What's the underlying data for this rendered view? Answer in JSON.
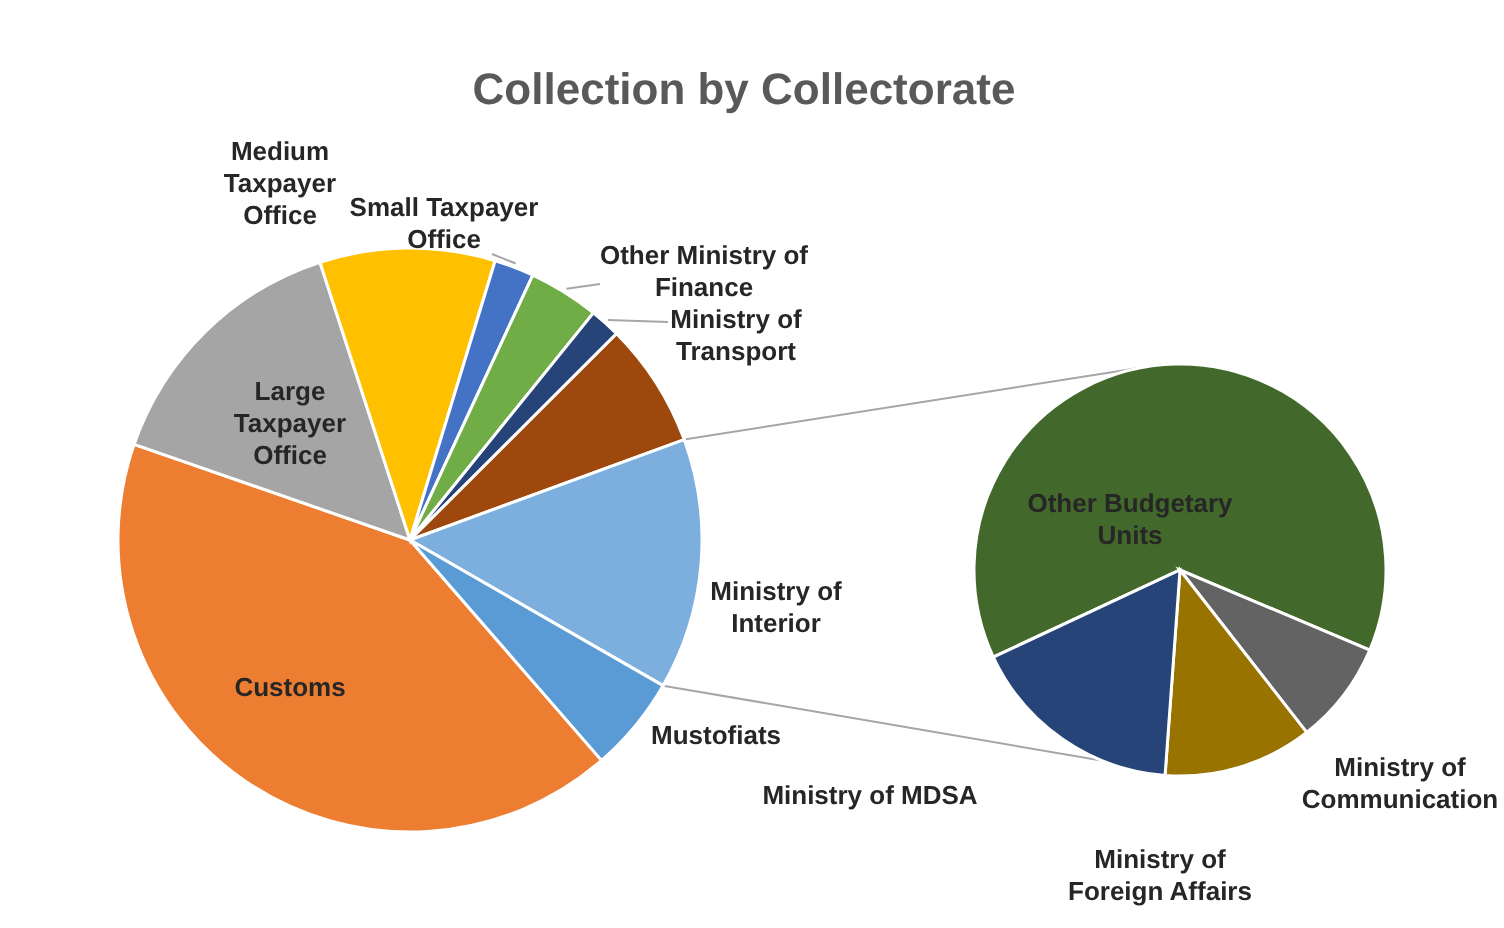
{
  "chart_data": [
    {
      "type": "pie",
      "title": "Collection by Collectorate",
      "categories": [
        "Customs",
        "Large Taxpayer Office",
        "Medium Taxpayer Office",
        "Small Taxpayer Office",
        "Other Ministry of Finance",
        "Ministry of Transport",
        null,
        "Ministry of Interior",
        "Mustofiats"
      ],
      "values": [
        41.7,
        14.7,
        9.7,
        2.2,
        3.9,
        1.7,
        6.9,
        13.9,
        5.3
      ],
      "colors": [
        "#ed7d31",
        "#a5a5a5",
        "#ffc000",
        "#4472c4",
        "#70ad47",
        "#264478",
        "#9e480e",
        "#7cafdd",
        "#5b9bd5"
      ]
    },
    {
      "type": "pie",
      "categories": [
        "Other Budgetary Units",
        "Ministry of Communication",
        "Ministry of Foreign Affairs",
        "Ministry of MDSA"
      ],
      "values": [
        63.3,
        8.1,
        11.7,
        16.9
      ],
      "colors": [
        "#43682b",
        "#636363",
        "#997300",
        "#264478"
      ]
    }
  ]
}
